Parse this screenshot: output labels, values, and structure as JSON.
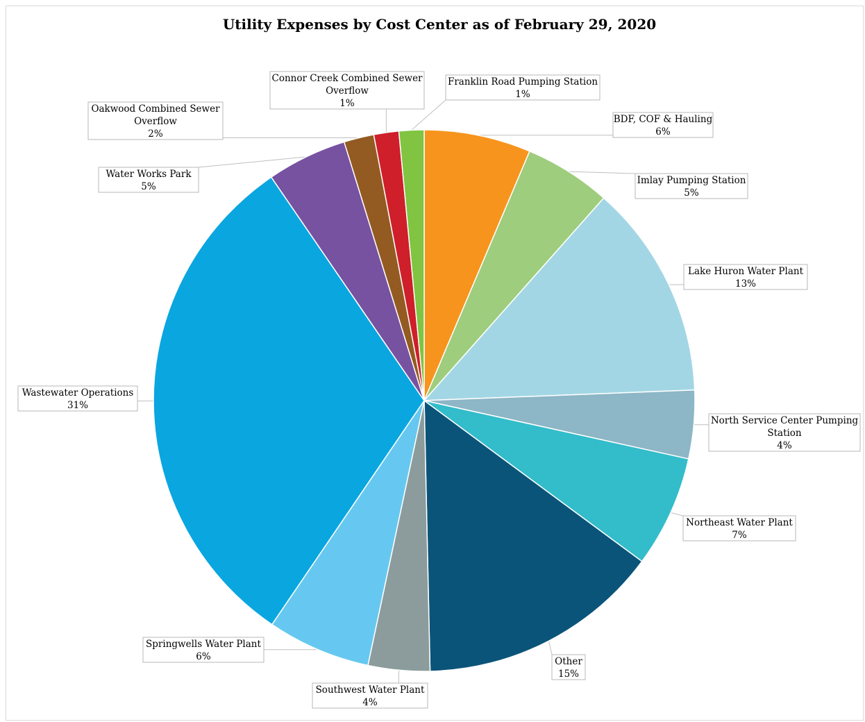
{
  "chart_data": {
    "type": "pie",
    "title": "Utility Expenses by Cost Center as of February 29, 2020",
    "slices": [
      {
        "label": "BDF, COF & Hauling",
        "percent_label": "6%",
        "value": 6.4,
        "color": "#F7941D"
      },
      {
        "label": "Imlay Pumping Station",
        "percent_label": "5%",
        "value": 5.2,
        "color": "#9ECD7D"
      },
      {
        "label": "Lake Huron Water Plant",
        "percent_label": "13%",
        "value": 12.9,
        "color": "#A3D6E5"
      },
      {
        "label": "North Service Center Pumping Station",
        "percent_label": "4%",
        "value": 4.1,
        "color": "#8DB6C6"
      },
      {
        "label": "Northeast Water Plant",
        "percent_label": "7%",
        "value": 6.7,
        "color": "#33BCCA"
      },
      {
        "label": "Other",
        "percent_label": "15%",
        "value": 14.6,
        "color": "#0B5479"
      },
      {
        "label": "Southwest Water Plant",
        "percent_label": "4%",
        "value": 3.7,
        "color": "#8C9C9C"
      },
      {
        "label": "Springwells Water Plant",
        "percent_label": "6%",
        "value": 6.2,
        "color": "#66C8F0"
      },
      {
        "label": "Wastewater Operations",
        "percent_label": "31%",
        "value": 31.1,
        "color": "#0AA6E0"
      },
      {
        "label": "Water Works Park",
        "percent_label": "5%",
        "value": 4.8,
        "color": "#7752A0"
      },
      {
        "label": "Oakwood Combined Sewer Overflow",
        "percent_label": "2%",
        "value": 1.8,
        "color": "#935B22"
      },
      {
        "label": "Connor Creek Combined Sewer Overflow",
        "percent_label": "1%",
        "value": 1.5,
        "color": "#CE1F2A"
      },
      {
        "label": "Franklin Road Pumping Station",
        "percent_label": "1%",
        "value": 1.5,
        "color": "#80C441"
      }
    ]
  }
}
